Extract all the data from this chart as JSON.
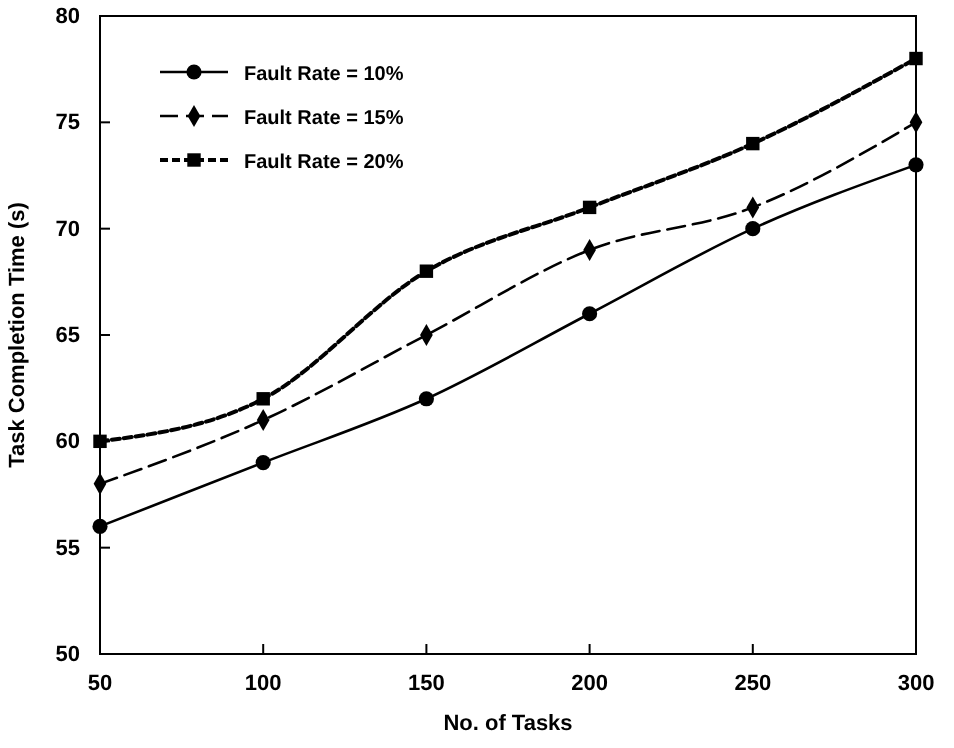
{
  "chart_data": {
    "type": "line",
    "xlabel": "No. of Tasks",
    "ylabel": "Task Completion Time (s)",
    "x": [
      50,
      100,
      150,
      200,
      250,
      300
    ],
    "xlim": [
      50,
      300
    ],
    "xticks": [
      50,
      100,
      150,
      200,
      250,
      300
    ],
    "ylim": [
      50,
      80
    ],
    "yticks": [
      50,
      55,
      60,
      65,
      70,
      75,
      80
    ],
    "grid": false,
    "legend": "top left",
    "series": [
      {
        "name": "Fault Rate = 10%",
        "color": "#000000",
        "marker": "circle",
        "line_style": "solid",
        "values": [
          56,
          59,
          62,
          66,
          70,
          73
        ]
      },
      {
        "name": "Fault Rate = 15%",
        "color": "#000000",
        "marker": "diamond",
        "line_style": "dashed",
        "values": [
          58,
          61,
          65,
          69,
          71,
          75
        ]
      },
      {
        "name": "Fault Rate = 20%",
        "color": "#000000",
        "marker": "square",
        "line_style": "dotted",
        "values": [
          60,
          62,
          68,
          71,
          74,
          78
        ]
      }
    ]
  }
}
